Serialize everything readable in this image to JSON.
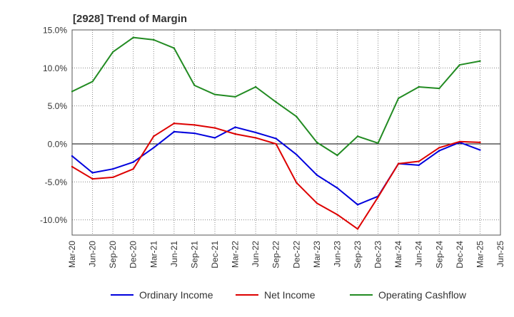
{
  "chart_data": {
    "type": "line",
    "title": "[2928]  Trend of Margin",
    "xlabel": "",
    "ylabel": "",
    "ylim": [
      -12,
      15
    ],
    "yticks": [
      15,
      10,
      5,
      0,
      -5,
      -10
    ],
    "ytick_labels": [
      "15.0%",
      "10.0%",
      "5.0%",
      "0.0%",
      "-5.0%",
      "-10.0%"
    ],
    "categories": [
      "Mar-20",
      "Jun-20",
      "Sep-20",
      "Dec-20",
      "Mar-21",
      "Jun-21",
      "Sep-21",
      "Dec-21",
      "Mar-22",
      "Jun-22",
      "Sep-22",
      "Dec-22",
      "Mar-23",
      "Jun-23",
      "Sep-23",
      "Dec-23",
      "Mar-24",
      "Jun-24",
      "Sep-24",
      "Dec-24",
      "Mar-25",
      "Jun-25"
    ],
    "grid": true,
    "legend_position": "bottom",
    "series": [
      {
        "name": "Ordinary Income",
        "color": "#0000dd",
        "values": [
          -1.6,
          -3.8,
          -3.3,
          -2.4,
          -0.5,
          1.6,
          1.4,
          0.8,
          2.2,
          1.5,
          0.7,
          -1.4,
          -4.1,
          -5.8,
          -8.0,
          -6.9,
          -2.6,
          -2.8,
          -0.9,
          0.2,
          -0.8,
          null
        ]
      },
      {
        "name": "Net Income",
        "color": "#dd0000",
        "values": [
          -3.0,
          -4.6,
          -4.4,
          -3.3,
          1.0,
          2.7,
          2.5,
          2.1,
          1.3,
          0.8,
          0.0,
          -5.1,
          -7.8,
          -9.3,
          -11.2,
          -7.0,
          -2.6,
          -2.3,
          -0.5,
          0.3,
          0.2,
          null
        ]
      },
      {
        "name": "Operating Cashflow",
        "color": "#228b22",
        "values": [
          6.9,
          8.2,
          12.1,
          14.0,
          13.7,
          12.6,
          7.7,
          6.5,
          6.2,
          7.5,
          5.5,
          3.6,
          0.2,
          -1.5,
          1.0,
          0.1,
          6.0,
          7.5,
          7.3,
          10.4,
          10.9,
          null
        ]
      }
    ]
  }
}
